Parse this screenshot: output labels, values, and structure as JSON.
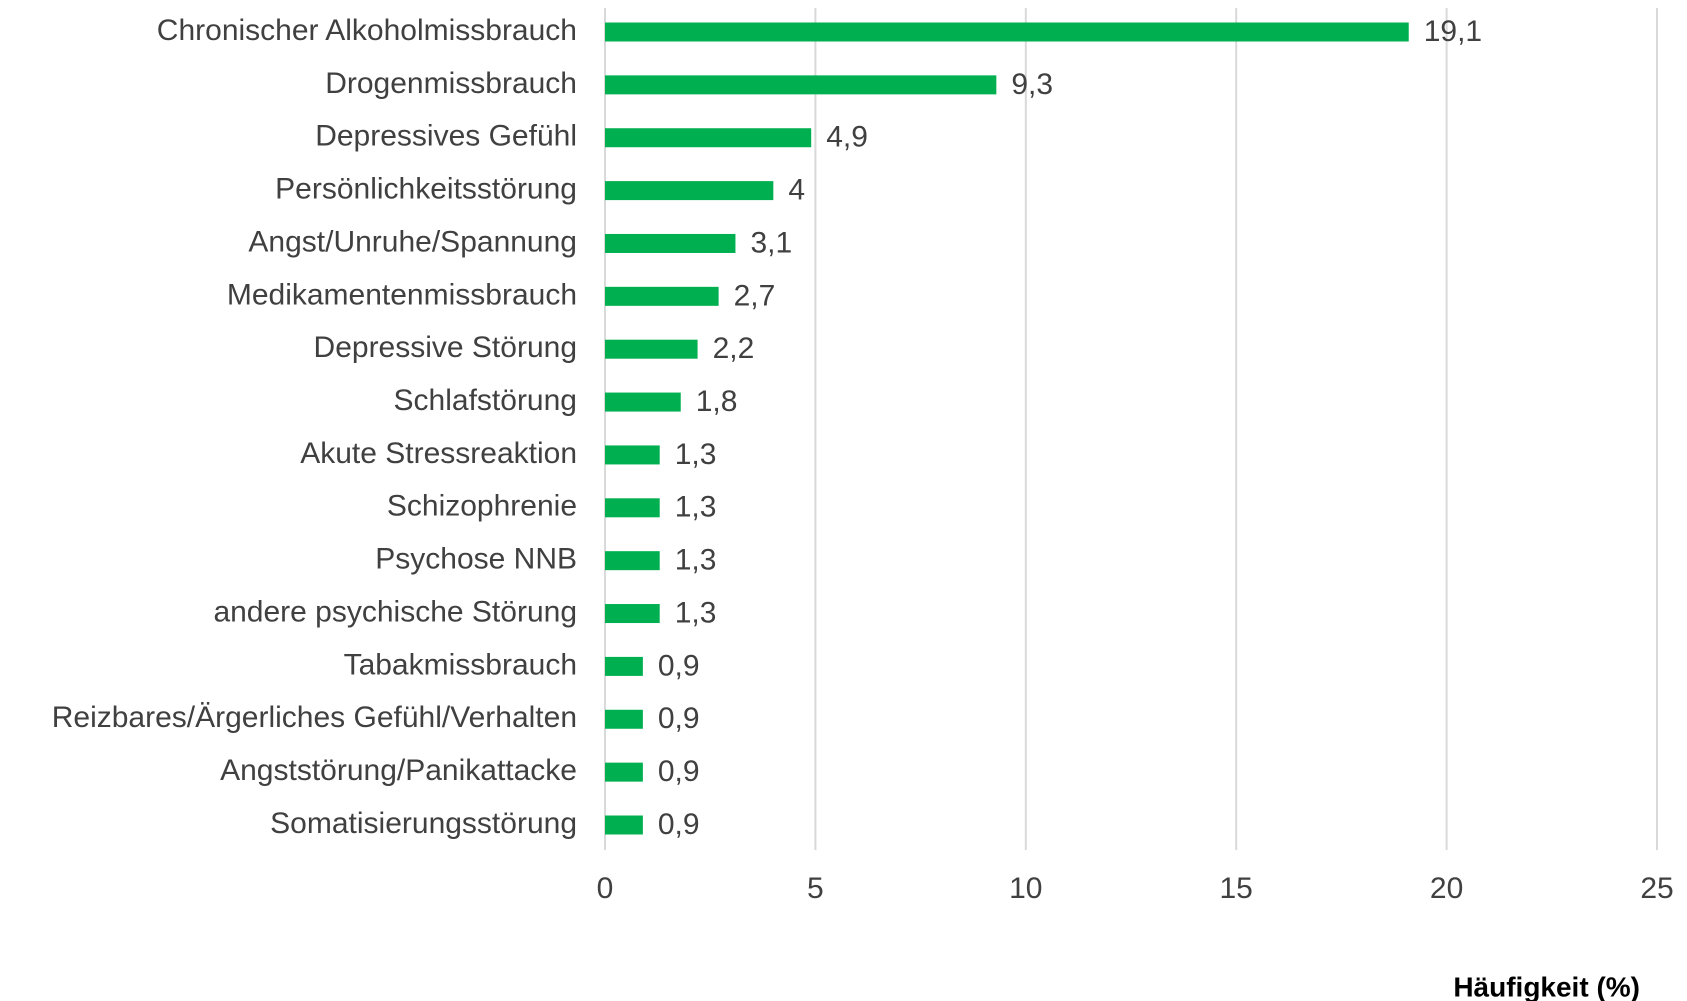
{
  "chart_data": {
    "type": "hbar",
    "categories": [
      "Chronischer Alkoholmissbrauch",
      "Drogenmissbrauch",
      "Depressives Gefühl",
      "Persönlichkeitsstörung",
      "Angst/Unruhe/Spannung",
      "Medikamentenmissbrauch",
      "Depressive Störung",
      "Schlafstörung",
      "Akute Stressreaktion",
      "Schizophrenie",
      "Psychose NNB",
      "andere psychische Störung",
      "Tabakmissbrauch",
      "Reizbares/Ärgerliches Gefühl/Verhalten",
      "Angststörung/Panikattacke",
      "Somatisierungsstörung"
    ],
    "values": [
      19.1,
      9.3,
      4.9,
      4,
      3.1,
      2.7,
      2.2,
      1.8,
      1.3,
      1.3,
      1.3,
      1.3,
      0.9,
      0.9,
      0.9,
      0.9
    ],
    "value_labels": [
      "19,1",
      "9,3",
      "4,9",
      "4",
      "3,1",
      "2,7",
      "2,2",
      "1,8",
      "1,3",
      "1,3",
      "1,3",
      "1,3",
      "0,9",
      "0,9",
      "0,9",
      "0,9"
    ],
    "color": "#00b050",
    "xlim": [
      0,
      25
    ],
    "xticks": [
      0,
      5,
      10,
      15,
      20,
      25
    ],
    "grid": true,
    "x_label": "Häufigkeit (%)"
  }
}
